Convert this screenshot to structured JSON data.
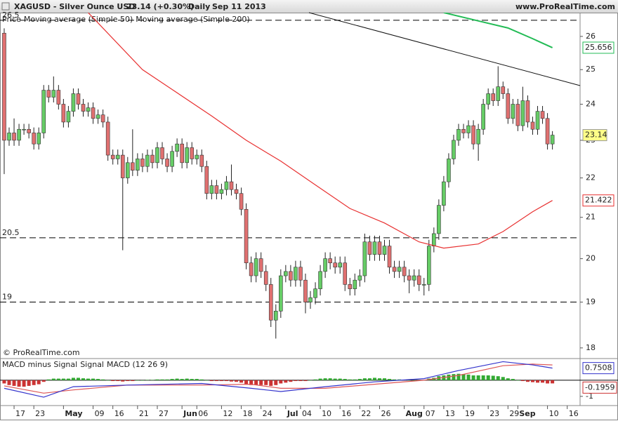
{
  "header": {
    "symbol": "XAGUSD - Silver Ounce USD",
    "quote": "23.14 (+0.30%)",
    "period": "Daily",
    "date": "Sep 11 2013",
    "site": "www.ProRealTime.com"
  },
  "chart_data": [
    {
      "type": "candlestick",
      "legend_price": "Price",
      "log_scale": true,
      "copyright": "© ProRealTime.com",
      "up_color": "#66cc66",
      "down_color": "#e07070",
      "xlim": [
        -0.85,
        116.6
      ],
      "ylim": [
        17.79,
        26.74
      ],
      "yticks": [
        18,
        19,
        20,
        21,
        22,
        23,
        24,
        25,
        26
      ],
      "xticks": [
        {
          "value": 2,
          "label": "17"
        },
        {
          "value": 6,
          "label": "23"
        },
        {
          "value": 12,
          "label": "May"
        },
        {
          "value": 18,
          "label": "09"
        },
        {
          "value": 22,
          "label": "16"
        },
        {
          "value": 27,
          "label": "21"
        },
        {
          "value": 31,
          "label": "27"
        },
        {
          "value": 36,
          "label": "Jun"
        },
        {
          "value": 39,
          "label": "06"
        },
        {
          "value": 44,
          "label": "12"
        },
        {
          "value": 48,
          "label": "18"
        },
        {
          "value": 52,
          "label": "24"
        },
        {
          "value": 57,
          "label": "Jul"
        },
        {
          "value": 60,
          "label": "04"
        },
        {
          "value": 64,
          "label": "10"
        },
        {
          "value": 68,
          "label": "16"
        },
        {
          "value": 72,
          "label": "22"
        },
        {
          "value": 76,
          "label": "26"
        },
        {
          "value": 81,
          "label": "Aug"
        },
        {
          "value": 85,
          "label": "07"
        },
        {
          "value": 89,
          "label": "13"
        },
        {
          "value": 93,
          "label": "19"
        },
        {
          "value": 98,
          "label": "23"
        },
        {
          "value": 102,
          "label": "29"
        },
        {
          "value": 104,
          "label": "Sep"
        },
        {
          "value": 110,
          "label": "10"
        },
        {
          "value": 114,
          "label": "16"
        }
      ],
      "levels": [
        {
          "value": 26.5,
          "label": "26.5"
        },
        {
          "value": 20.5,
          "label": "20.5"
        },
        {
          "value": 19,
          "label": "19"
        }
      ],
      "candles": [
        [
          26.1,
          26.25,
          22.1,
          23.0
        ],
        [
          23.0,
          23.35,
          22.85,
          23.2
        ],
        [
          23.2,
          23.6,
          22.85,
          23.0
        ],
        [
          23.0,
          23.45,
          22.85,
          23.3
        ],
        [
          23.3,
          23.45,
          23.15,
          23.3
        ],
        [
          23.3,
          23.45,
          23.05,
          23.2
        ],
        [
          23.2,
          23.35,
          22.75,
          22.9
        ],
        [
          22.9,
          23.35,
          22.75,
          23.2
        ],
        [
          23.2,
          24.55,
          23.05,
          24.4
        ],
        [
          24.4,
          24.55,
          24.05,
          24.2
        ],
        [
          24.2,
          24.8,
          24.05,
          24.4
        ],
        [
          24.4,
          24.55,
          23.85,
          24.0
        ],
        [
          24.0,
          24.15,
          23.35,
          23.5
        ],
        [
          23.5,
          23.95,
          23.35,
          23.8
        ],
        [
          23.8,
          24.45,
          23.65,
          24.3
        ],
        [
          24.3,
          24.45,
          23.85,
          24.0
        ],
        [
          24.0,
          24.15,
          23.65,
          23.8
        ],
        [
          23.8,
          24.05,
          23.65,
          23.9
        ],
        [
          23.9,
          24.05,
          23.45,
          23.6
        ],
        [
          23.6,
          23.85,
          23.45,
          23.7
        ],
        [
          23.7,
          23.85,
          23.35,
          23.5
        ],
        [
          23.5,
          23.65,
          22.45,
          22.6
        ],
        [
          22.6,
          22.75,
          22.35,
          22.5
        ],
        [
          22.5,
          22.75,
          22.35,
          22.6
        ],
        [
          22.6,
          22.75,
          20.2,
          22.0
        ],
        [
          22.0,
          22.55,
          21.85,
          22.4
        ],
        [
          22.4,
          23.3,
          22.05,
          22.2
        ],
        [
          22.2,
          22.65,
          22.05,
          22.5
        ],
        [
          22.5,
          22.65,
          22.15,
          22.3
        ],
        [
          22.3,
          22.75,
          22.15,
          22.6
        ],
        [
          22.6,
          22.75,
          22.25,
          22.4
        ],
        [
          22.4,
          22.95,
          22.25,
          22.8
        ],
        [
          22.8,
          22.95,
          22.35,
          22.5
        ],
        [
          22.5,
          22.65,
          22.15,
          22.3
        ],
        [
          22.3,
          22.85,
          22.15,
          22.7
        ],
        [
          22.7,
          23.05,
          22.55,
          22.9
        ],
        [
          22.9,
          23.05,
          22.25,
          22.4
        ],
        [
          22.4,
          22.95,
          22.25,
          22.8
        ],
        [
          22.8,
          22.95,
          22.35,
          22.5
        ],
        [
          22.5,
          22.75,
          22.35,
          22.6
        ],
        [
          22.6,
          22.75,
          22.15,
          22.3
        ],
        [
          22.3,
          22.45,
          21.45,
          21.6
        ],
        [
          21.6,
          21.95,
          21.45,
          21.8
        ],
        [
          21.8,
          21.95,
          21.45,
          21.6
        ],
        [
          21.6,
          21.85,
          21.45,
          21.7
        ],
        [
          21.7,
          22.05,
          21.55,
          21.9
        ],
        [
          21.9,
          22.35,
          21.55,
          21.7
        ],
        [
          21.7,
          21.85,
          21.45,
          21.6
        ],
        [
          21.6,
          21.75,
          21.05,
          21.2
        ],
        [
          21.2,
          21.35,
          19.75,
          19.9
        ],
        [
          19.9,
          20.05,
          19.45,
          19.6
        ],
        [
          19.6,
          20.15,
          19.45,
          20.0
        ],
        [
          20.0,
          20.15,
          19.55,
          19.7
        ],
        [
          19.7,
          19.85,
          19.25,
          19.4
        ],
        [
          19.4,
          19.55,
          18.45,
          18.6
        ],
        [
          18.6,
          18.95,
          18.2,
          18.8
        ],
        [
          18.8,
          19.75,
          18.65,
          19.6
        ],
        [
          19.6,
          19.85,
          19.45,
          19.7
        ],
        [
          19.7,
          19.85,
          19.35,
          19.5
        ],
        [
          19.5,
          19.95,
          19.35,
          19.8
        ],
        [
          19.8,
          19.95,
          19.35,
          19.5
        ],
        [
          19.5,
          19.65,
          18.75,
          19.0
        ],
        [
          19.0,
          19.25,
          18.85,
          19.1
        ],
        [
          19.1,
          19.45,
          18.95,
          19.3
        ],
        [
          19.3,
          19.85,
          19.15,
          19.7
        ],
        [
          19.7,
          20.15,
          19.55,
          20.0
        ],
        [
          20.0,
          20.15,
          19.75,
          19.9
        ],
        [
          19.9,
          20.05,
          19.65,
          19.8
        ],
        [
          19.8,
          20.05,
          19.65,
          19.9
        ],
        [
          19.9,
          20.05,
          19.25,
          19.4
        ],
        [
          19.4,
          19.55,
          19.15,
          19.3
        ],
        [
          19.3,
          19.65,
          19.15,
          19.5
        ],
        [
          19.5,
          19.75,
          19.35,
          19.6
        ],
        [
          19.6,
          20.6,
          19.45,
          20.4
        ],
        [
          20.4,
          20.55,
          19.95,
          20.1
        ],
        [
          20.1,
          20.55,
          19.95,
          20.4
        ],
        [
          20.4,
          20.55,
          19.95,
          20.1
        ],
        [
          20.1,
          20.45,
          19.95,
          20.3
        ],
        [
          20.3,
          20.45,
          19.65,
          19.8
        ],
        [
          19.8,
          19.95,
          19.55,
          19.7
        ],
        [
          19.7,
          19.95,
          19.55,
          19.8
        ],
        [
          19.8,
          19.95,
          19.45,
          19.6
        ],
        [
          19.6,
          19.75,
          19.2,
          19.5
        ],
        [
          19.5,
          19.75,
          19.35,
          19.6
        ],
        [
          19.6,
          19.75,
          19.25,
          19.4
        ],
        [
          19.4,
          19.55,
          19.15,
          19.4
        ],
        [
          19.4,
          20.45,
          19.25,
          20.3
        ],
        [
          20.3,
          20.75,
          20.15,
          20.6
        ],
        [
          20.6,
          21.45,
          20.45,
          21.3
        ],
        [
          21.3,
          22.05,
          21.15,
          21.9
        ],
        [
          21.9,
          22.65,
          21.75,
          22.5
        ],
        [
          22.5,
          23.15,
          22.35,
          23.0
        ],
        [
          23.0,
          23.45,
          22.85,
          23.3
        ],
        [
          23.3,
          23.45,
          23.05,
          23.2
        ],
        [
          23.2,
          23.55,
          23.05,
          23.4
        ],
        [
          23.4,
          23.55,
          22.75,
          22.9
        ],
        [
          22.9,
          23.45,
          22.45,
          23.3
        ],
        [
          23.3,
          24.15,
          23.15,
          24.0
        ],
        [
          24.0,
          24.45,
          23.85,
          24.3
        ],
        [
          24.3,
          24.45,
          23.95,
          24.1
        ],
        [
          24.1,
          25.1,
          23.95,
          24.5
        ],
        [
          24.5,
          24.65,
          24.15,
          24.3
        ],
        [
          24.3,
          24.45,
          23.45,
          23.6
        ],
        [
          23.6,
          24.15,
          23.45,
          24.0
        ],
        [
          24.0,
          24.15,
          23.25,
          23.4
        ],
        [
          23.4,
          24.5,
          23.25,
          24.1
        ],
        [
          24.1,
          24.25,
          23.35,
          23.5
        ],
        [
          23.5,
          23.65,
          23.15,
          23.3
        ],
        [
          23.3,
          23.95,
          23.15,
          23.8
        ],
        [
          23.8,
          23.95,
          23.45,
          23.6
        ],
        [
          23.6,
          23.75,
          22.75,
          22.9
        ],
        [
          22.9,
          23.25,
          22.75,
          23.14
        ]
      ],
      "series": [
        {
          "name": "Moving average (Simple 50)",
          "color": "#e83030",
          "label_bg": "#ffffff",
          "x": [
            17,
            28,
            42,
            49,
            56,
            63,
            70,
            77,
            84,
            89,
            96,
            101,
            107,
            111
          ],
          "values": [
            26.74,
            25.0,
            23.67,
            23.0,
            22.44,
            21.82,
            21.22,
            20.86,
            20.4,
            20.25,
            20.35,
            20.65,
            21.14,
            21.422
          ]
        },
        {
          "name": "Moving average (Simple 200)",
          "color": "#22bb55",
          "label_bg": "#ffffff",
          "x": [
            89,
            96,
            102,
            107,
            111
          ],
          "values": [
            26.74,
            26.48,
            26.26,
            25.93,
            25.656
          ]
        }
      ],
      "last_label_bg": "#ffff88"
    },
    {
      "type": "macd",
      "ylim": [
        -1.57,
        1.3
      ],
      "yticks": [
        -1
      ],
      "histogram": {
        "name": "MACD minus Signal",
        "up_color": "#33aa33",
        "down_color": "#cc3333",
        "values": [
          -0.2,
          -0.3,
          -0.35,
          -0.4,
          -0.4,
          -0.35,
          -0.3,
          -0.25,
          -0.1,
          0.05,
          0.1,
          0.1,
          0.1,
          0.1,
          0.15,
          0.15,
          0.12,
          0.1,
          0.1,
          0.08,
          0.05,
          0,
          -0.05,
          -0.05,
          -0.08,
          -0.05,
          -0.05,
          0,
          0,
          0.02,
          0.02,
          0.05,
          0.05,
          0.05,
          0.08,
          0.1,
          0.08,
          0.1,
          0.08,
          0.08,
          0.05,
          0,
          -0.05,
          -0.05,
          -0.05,
          -0.05,
          -0.08,
          -0.1,
          -0.15,
          -0.25,
          -0.3,
          -0.3,
          -0.3,
          -0.3,
          -0.35,
          -0.3,
          -0.2,
          -0.15,
          -0.1,
          -0.05,
          -0.05,
          -0.05,
          0,
          0.05,
          0.1,
          0.12,
          0.12,
          0.1,
          0.1,
          0.08,
          0.05,
          0.05,
          0.08,
          0.12,
          0.12,
          0.15,
          0.12,
          0.12,
          0.08,
          0.05,
          0.05,
          0.02,
          0,
          0,
          0,
          0,
          0.1,
          0.15,
          0.25,
          0.3,
          0.35,
          0.38,
          0.4,
          0.38,
          0.35,
          0.3,
          0.3,
          0.3,
          0.3,
          0.28,
          0.25,
          0.2,
          0.12,
          0.08,
          0,
          -0.05,
          -0.1,
          -0.12,
          -0.15,
          -0.15,
          -0.2,
          -0.1959
        ]
      },
      "series": [
        {
          "name": "Signal",
          "color": "#dd5555",
          "x": [
            0,
            8,
            14,
            25,
            40,
            50,
            56,
            65,
            75,
            85,
            92,
            101,
            107,
            111
          ],
          "values": [
            -0.35,
            -0.8,
            -0.6,
            -0.3,
            -0.3,
            -0.25,
            -0.5,
            -0.5,
            -0.25,
            0.0,
            0.3,
            0.9,
            1.0,
            0.9467
          ]
        },
        {
          "name": "MACD (12 26 9)",
          "color": "#3333cc",
          "x": [
            0,
            8,
            14,
            25,
            40,
            50,
            56,
            65,
            75,
            85,
            92,
            101,
            107,
            111
          ],
          "values": [
            -0.5,
            -1.05,
            -0.4,
            -0.3,
            -0.2,
            -0.5,
            -0.7,
            -0.4,
            -0.1,
            0.1,
            0.6,
            1.15,
            0.95,
            0.7508
          ]
        }
      ]
    }
  ]
}
